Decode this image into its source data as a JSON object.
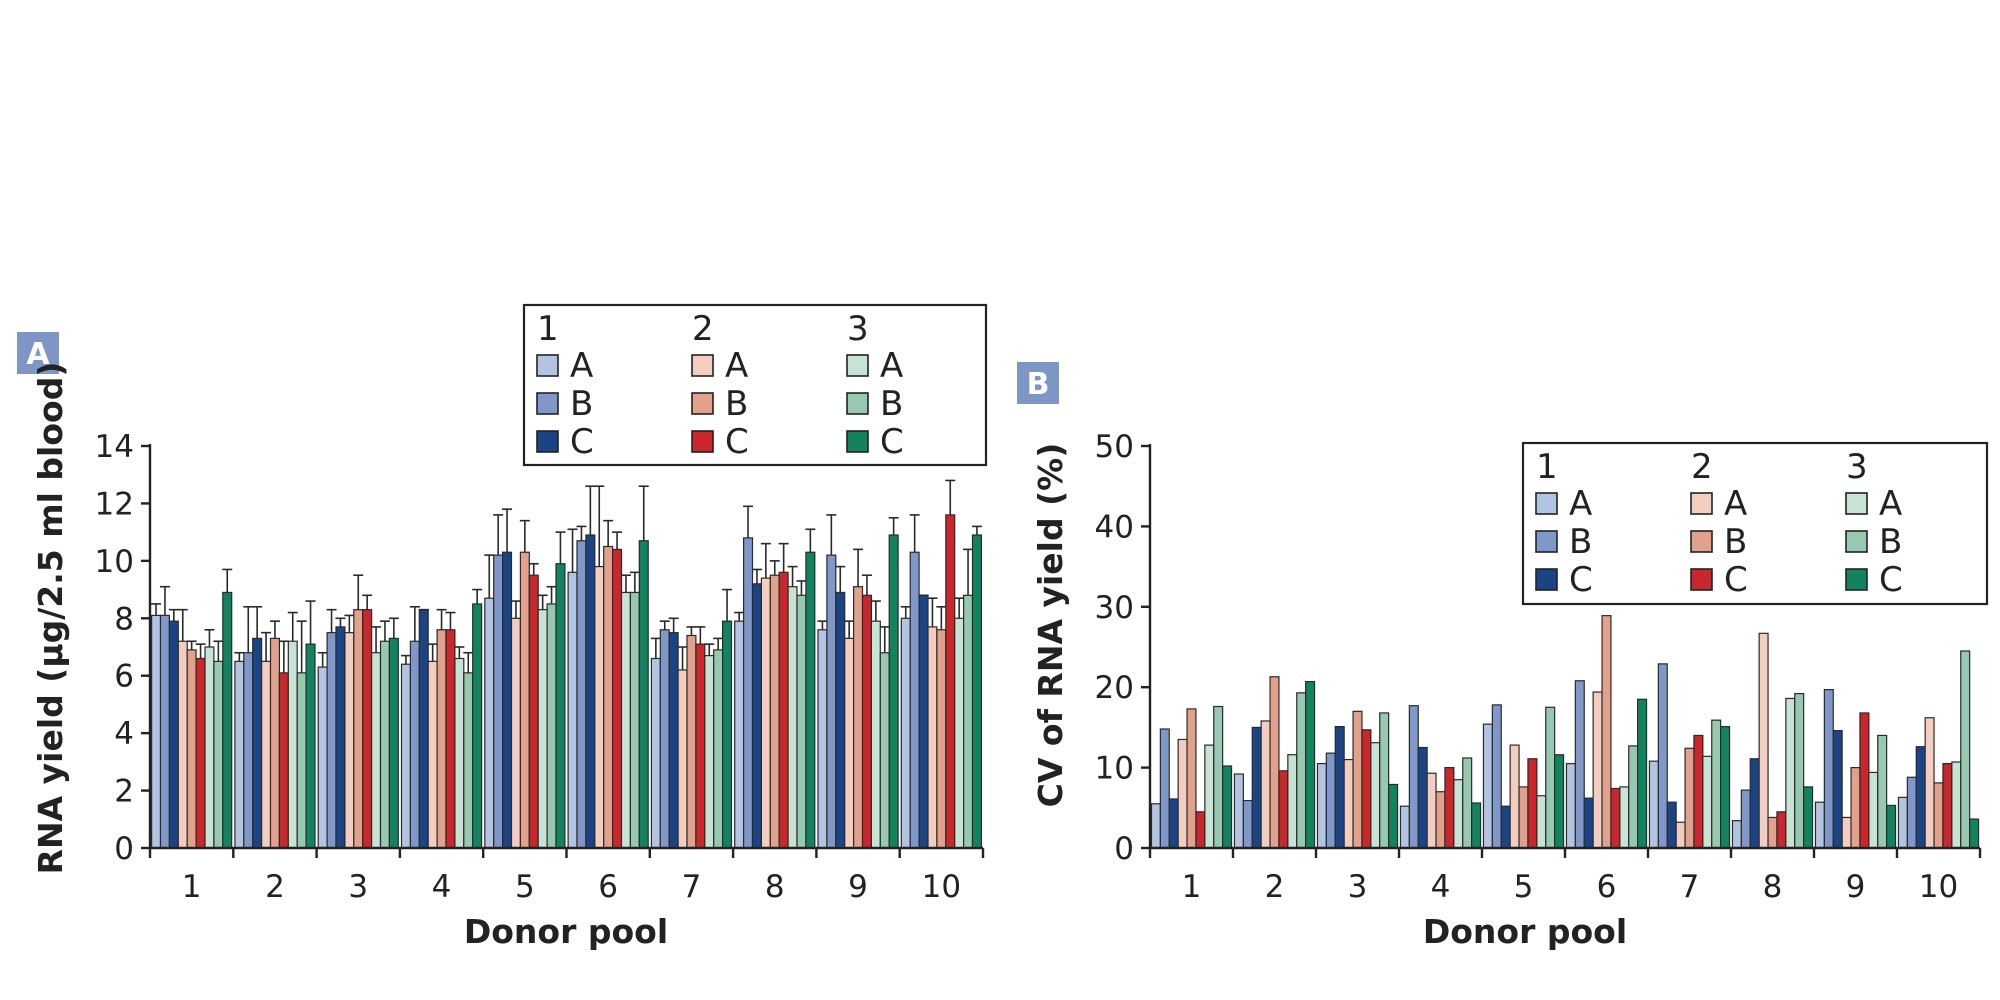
{
  "colors": {
    "1A": "#b3c3e2",
    "1B": "#7f97c9",
    "1C": "#1b4484",
    "2A": "#f3cdbf",
    "2B": "#e2a18a",
    "2C": "#c9272b",
    "3A": "#c6e3d4",
    "3B": "#97c8b0",
    "3C": "#12835f",
    "panel_badge": "#7d96c6"
  },
  "chart_data": [
    {
      "panel": "A",
      "type": "bar",
      "ylabel": "RNA yield (µg/2.5 ml blood)",
      "xlabel": "Donor pool",
      "categories": [
        "1",
        "2",
        "3",
        "4",
        "5",
        "6",
        "7",
        "8",
        "9",
        "10"
      ],
      "ylim": [
        0,
        14
      ],
      "yticks": [
        0,
        2,
        4,
        6,
        8,
        10,
        12,
        14
      ],
      "legend": {
        "groups": [
          "1",
          "2",
          "3"
        ],
        "entries": [
          "A",
          "B",
          "C"
        ],
        "position": "top"
      },
      "error_bars": true,
      "series": [
        {
          "group": "1",
          "entry": "A",
          "key": "1A",
          "values": [
            8.1,
            6.5,
            6.3,
            6.4,
            8.7,
            9.6,
            6.6,
            7.9,
            7.6,
            8.0
          ],
          "errors": [
            0.4,
            0.3,
            0.5,
            0.3,
            1.5,
            1.5,
            0.7,
            0.3,
            0.3,
            0.4
          ]
        },
        {
          "group": "1",
          "entry": "B",
          "key": "1B",
          "values": [
            8.1,
            6.8,
            7.5,
            7.2,
            10.2,
            10.7,
            7.6,
            10.8,
            10.2,
            10.3
          ],
          "errors": [
            1.0,
            1.6,
            0.8,
            1.2,
            1.4,
            0.5,
            0.3,
            1.1,
            1.4,
            1.3
          ]
        },
        {
          "group": "1",
          "entry": "C",
          "key": "1C",
          "values": [
            7.9,
            7.3,
            7.7,
            8.3,
            10.3,
            10.9,
            7.5,
            9.2,
            8.9,
            8.8
          ],
          "errors": [
            0.4,
            1.1,
            0.3,
            0.0,
            1.5,
            1.7,
            0.5,
            0.5,
            0.9,
            0.0
          ]
        },
        {
          "group": "2",
          "entry": "A",
          "key": "2A",
          "values": [
            7.2,
            6.5,
            7.5,
            6.5,
            8.0,
            9.8,
            6.2,
            9.4,
            7.3,
            7.7
          ],
          "errors": [
            1.1,
            1.0,
            0.6,
            0.6,
            0.6,
            2.8,
            0.8,
            1.2,
            0.6,
            1.0
          ]
        },
        {
          "group": "2",
          "entry": "B",
          "key": "2B",
          "values": [
            6.9,
            7.3,
            8.3,
            7.6,
            10.3,
            10.5,
            7.4,
            9.5,
            9.1,
            7.6
          ],
          "errors": [
            0.3,
            0.6,
            1.2,
            0.7,
            1.1,
            0.9,
            0.3,
            0.5,
            1.3,
            0.8
          ]
        },
        {
          "group": "2",
          "entry": "C",
          "key": "2C",
          "values": [
            6.6,
            6.1,
            8.3,
            7.6,
            9.5,
            10.4,
            7.1,
            9.6,
            8.8,
            11.6
          ],
          "errors": [
            0.5,
            1.1,
            0.5,
            0.6,
            0.4,
            0.6,
            0.6,
            1.0,
            0.7,
            1.2
          ]
        },
        {
          "group": "3",
          "entry": "A",
          "key": "3A",
          "values": [
            7.0,
            7.2,
            6.8,
            6.6,
            8.3,
            8.9,
            6.7,
            9.1,
            7.9,
            8.0
          ],
          "errors": [
            0.6,
            1.0,
            0.9,
            0.4,
            0.5,
            0.6,
            0.4,
            0.7,
            0.7,
            0.7
          ]
        },
        {
          "group": "3",
          "entry": "B",
          "key": "3B",
          "values": [
            6.5,
            6.1,
            7.2,
            6.1,
            8.5,
            8.9,
            6.9,
            8.8,
            6.8,
            8.8
          ],
          "errors": [
            0.7,
            1.8,
            0.7,
            0.7,
            0.6,
            0.7,
            0.4,
            0.5,
            0.9,
            1.6
          ]
        },
        {
          "group": "3",
          "entry": "C",
          "key": "3C",
          "values": [
            8.9,
            7.1,
            7.3,
            8.5,
            9.9,
            10.7,
            7.9,
            10.3,
            10.9,
            10.9
          ],
          "errors": [
            0.8,
            1.5,
            0.7,
            0.5,
            1.1,
            1.9,
            1.1,
            0.8,
            0.6,
            0.3
          ]
        }
      ]
    },
    {
      "panel": "B",
      "type": "bar",
      "ylabel": "CV of RNA yield (%)",
      "xlabel": "Donor pool",
      "categories": [
        "1",
        "2",
        "3",
        "4",
        "5",
        "6",
        "7",
        "8",
        "9",
        "10"
      ],
      "ylim": [
        0,
        50
      ],
      "yticks": [
        0,
        10,
        20,
        30,
        40,
        50
      ],
      "legend": {
        "groups": [
          "1",
          "2",
          "3"
        ],
        "entries": [
          "A",
          "B",
          "C"
        ],
        "position": "top-right"
      },
      "error_bars": false,
      "series": [
        {
          "group": "1",
          "entry": "A",
          "key": "1A",
          "values": [
            5.5,
            9.2,
            10.5,
            5.2,
            15.4,
            10.5,
            10.8,
            3.4,
            5.7,
            6.3
          ]
        },
        {
          "group": "1",
          "entry": "B",
          "key": "1B",
          "values": [
            14.8,
            5.9,
            11.8,
            17.7,
            17.8,
            20.8,
            22.9,
            7.2,
            19.7,
            8.8
          ]
        },
        {
          "group": "1",
          "entry": "C",
          "key": "1C",
          "values": [
            6.1,
            15.0,
            15.1,
            12.5,
            5.2,
            6.2,
            5.7,
            11.1,
            14.6,
            12.6
          ]
        },
        {
          "group": "2",
          "entry": "A",
          "key": "2A",
          "values": [
            13.5,
            15.8,
            11.0,
            9.3,
            12.8,
            19.4,
            3.2,
            26.7,
            3.8,
            16.2
          ]
        },
        {
          "group": "2",
          "entry": "B",
          "key": "2B",
          "values": [
            17.3,
            21.3,
            17.0,
            7.0,
            7.6,
            28.9,
            12.4,
            3.8,
            10.0,
            8.1
          ]
        },
        {
          "group": "2",
          "entry": "C",
          "key": "2C",
          "values": [
            4.5,
            9.6,
            14.7,
            10.0,
            11.1,
            7.4,
            14.0,
            4.5,
            16.8,
            10.5
          ]
        },
        {
          "group": "3",
          "entry": "A",
          "key": "3A",
          "values": [
            12.8,
            11.6,
            13.1,
            8.5,
            6.5,
            7.6,
            11.4,
            18.6,
            9.4,
            10.7
          ]
        },
        {
          "group": "3",
          "entry": "B",
          "key": "3B",
          "values": [
            17.6,
            19.3,
            16.8,
            11.2,
            17.5,
            12.7,
            15.9,
            19.2,
            14.0,
            24.5
          ]
        },
        {
          "group": "3",
          "entry": "C",
          "key": "3C",
          "values": [
            10.2,
            20.7,
            7.9,
            5.6,
            11.6,
            18.5,
            15.1,
            7.6,
            5.3,
            3.6
          ]
        }
      ]
    }
  ]
}
